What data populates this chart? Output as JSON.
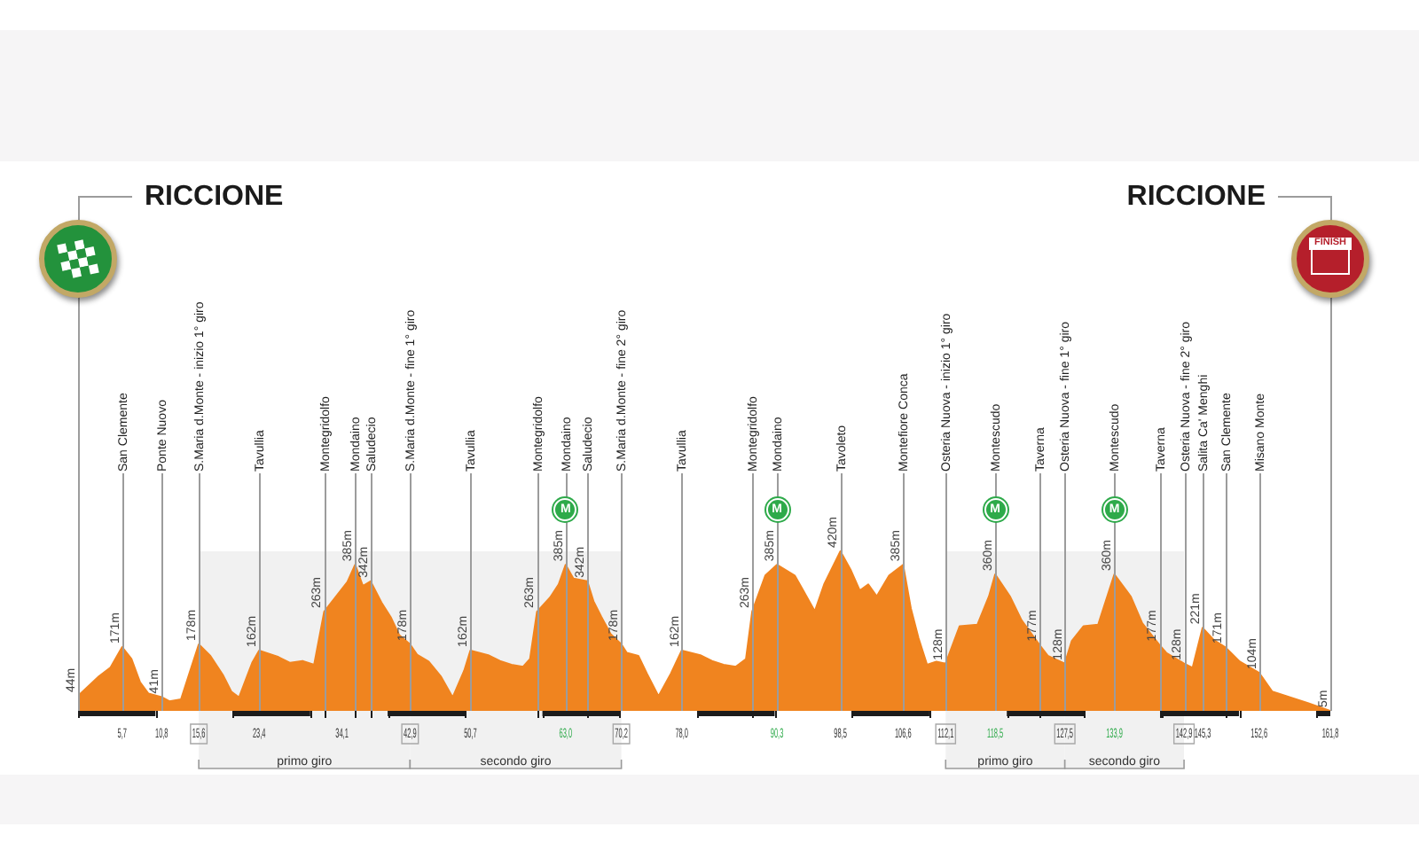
{
  "chart_data": {
    "type": "area",
    "color": "#f0841f",
    "x": [
      0,
      2.7,
      4.2,
      5.7,
      6.9,
      8.0,
      9.1,
      10.8,
      11.8,
      13.3,
      15.6,
      17.1,
      18.7,
      19.8,
      20.8,
      22.5,
      23.4,
      25.9,
      27.4,
      29.0,
      30.5,
      31.8,
      34.8,
      35.8,
      36.8,
      37.8,
      39.2,
      40.4,
      41.5,
      42.9,
      43.8,
      45.3,
      46.9,
      48.4,
      49.9,
      50.7,
      53.0,
      54.5,
      56.0,
      57.5,
      58.4,
      59.3,
      61.0,
      62.1,
      63.0,
      64.0,
      65.8,
      66.6,
      67.6,
      68.8,
      70.2,
      70.9,
      72.4,
      73.5,
      75.0,
      76.6,
      78.0,
      80.4,
      81.9,
      83.4,
      85.0,
      86.3,
      87.1,
      88.8,
      90.3,
      92.6,
      93.7,
      95.2,
      96.4,
      98.5,
      99.8,
      101.0,
      102.1,
      103.2,
      104.8,
      106.6,
      107.6,
      108.6,
      109.7,
      110.9,
      112.1,
      113.9,
      116.2,
      117.7,
      118.5,
      120.4,
      121.9,
      124.2,
      125.3,
      127.5,
      128.4,
      129.9,
      131.8,
      133.9,
      136.0,
      137.5,
      139.7,
      140.6,
      142.9,
      144.0,
      145.3,
      146.7,
      148.2,
      150.1,
      152.6,
      154.3,
      156.6,
      158.9,
      161.8
    ],
    "values": [
      44,
      95,
      118,
      171,
      140,
      80,
      50,
      41,
      30,
      35,
      178,
      148,
      99,
      55,
      40,
      130,
      162,
      145,
      130,
      135,
      125,
      263,
      340,
      385,
      330,
      342,
      287,
      249,
      202,
      178,
      151,
      133,
      94,
      40,
      110,
      162,
      150,
      135,
      125,
      120,
      140,
      263,
      300,
      334,
      385,
      349,
      342,
      290,
      250,
      205,
      178,
      156,
      148,
      102,
      43,
      102,
      162,
      150,
      135,
      125,
      120,
      140,
      263,
      357,
      385,
      357,
      318,
      264,
      334,
      420,
      373,
      318,
      334,
      303,
      357,
      385,
      272,
      194,
      125,
      133,
      128,
      225,
      229,
      303,
      360,
      303,
      241,
      177,
      148,
      128,
      187,
      225,
      229,
      360,
      303,
      233,
      177,
      156,
      128,
      117,
      221,
      190,
      171,
      133,
      104,
      55,
      40,
      25,
      5
    ],
    "value_labels": [
      "44m",
      null,
      null,
      "171m",
      null,
      null,
      null,
      "41m",
      null,
      null,
      "178m",
      null,
      null,
      null,
      null,
      null,
      "162m",
      null,
      null,
      null,
      null,
      "263m",
      null,
      "385m",
      null,
      "342m",
      null,
      null,
      null,
      "178m",
      null,
      null,
      null,
      null,
      null,
      "162m",
      null,
      null,
      null,
      null,
      null,
      "263m",
      null,
      null,
      "385m",
      null,
      "342m",
      null,
      null,
      null,
      "178m",
      null,
      null,
      null,
      null,
      null,
      "162m",
      null,
      null,
      null,
      null,
      null,
      "263m",
      null,
      "385m",
      null,
      null,
      null,
      null,
      "420m",
      null,
      null,
      null,
      null,
      null,
      "385m",
      null,
      null,
      null,
      null,
      "128m",
      null,
      null,
      null,
      "360m",
      null,
      null,
      "177m",
      null,
      "128m",
      null,
      null,
      null,
      "360m",
      null,
      null,
      "177m",
      null,
      "128m",
      null,
      "221m",
      null,
      "171m",
      null,
      "104m",
      null,
      null,
      null,
      "5m"
    ],
    "xlim": [
      0,
      161.8
    ],
    "xticks": [
      {
        "value": 0,
        "label": null
      },
      {
        "value": 5.7,
        "label": "5,7"
      },
      {
        "value": 10,
        "label": null
      },
      {
        "value": 10.8,
        "label": "10,8"
      },
      {
        "value": 15.6,
        "label": "15,6"
      },
      {
        "value": 20,
        "label": null
      },
      {
        "value": 23.4,
        "label": "23,4"
      },
      {
        "value": 30,
        "label": null
      },
      {
        "value": 31.8,
        "label": null
      },
      {
        "value": 34.1,
        "label": "34,1"
      },
      {
        "value": 35.8,
        "label": null
      },
      {
        "value": 37.8,
        "label": null
      },
      {
        "value": 40,
        "label": null
      },
      {
        "value": 42.9,
        "label": "42,9"
      },
      {
        "value": 50,
        "label": null
      },
      {
        "value": 50.7,
        "label": "50,7"
      },
      {
        "value": 59.3,
        "label": null
      },
      {
        "value": 60,
        "label": null
      },
      {
        "value": 63.0,
        "label": "63,0"
      },
      {
        "value": 65.8,
        "label": null
      },
      {
        "value": 70,
        "label": null
      },
      {
        "value": 70.2,
        "label": "70,2"
      },
      {
        "value": 78.0,
        "label": "78,0"
      },
      {
        "value": 80,
        "label": null
      },
      {
        "value": 87.1,
        "label": null
      },
      {
        "value": 90,
        "label": null
      },
      {
        "value": 90.3,
        "label": "90,3"
      },
      {
        "value": 98.5,
        "label": "98,5"
      },
      {
        "value": 100,
        "label": null
      },
      {
        "value": 106.6,
        "label": "106,6"
      },
      {
        "value": 110,
        "label": null
      },
      {
        "value": 112.1,
        "label": "112,1"
      },
      {
        "value": 118.5,
        "label": "118,5"
      },
      {
        "value": 120,
        "label": null
      },
      {
        "value": 124.2,
        "label": null
      },
      {
        "value": 127.5,
        "label": "127,5"
      },
      {
        "value": 130,
        "label": null
      },
      {
        "value": 133.9,
        "label": "133,9"
      },
      {
        "value": 139.7,
        "label": null
      },
      {
        "value": 140,
        "label": null
      },
      {
        "value": 142.9,
        "label": "142,9"
      },
      {
        "value": 145.3,
        "label": "145,3"
      },
      {
        "value": 148.2,
        "label": null
      },
      {
        "value": 150,
        "label": null
      },
      {
        "value": 152.6,
        "label": "152,6"
      },
      {
        "value": 160,
        "label": null
      },
      {
        "value": 161.8,
        "label": "161,8"
      }
    ],
    "ref_lines": [
      {
        "axis": "x",
        "value": 5.7,
        "label": "San Clemente"
      },
      {
        "axis": "x",
        "value": 10.8,
        "label": "Ponte Nuovo"
      },
      {
        "axis": "x",
        "value": 15.6,
        "label": "S.Maria d.Monte - inizio 1° giro"
      },
      {
        "axis": "x",
        "value": 23.4,
        "label": "Tavullia"
      },
      {
        "axis": "x",
        "value": 31.8,
        "label": "Montegridolfo"
      },
      {
        "axis": "x",
        "value": 35.8,
        "label": "Mondaino"
      },
      {
        "axis": "x",
        "value": 37.8,
        "label": "Saludecio"
      },
      {
        "axis": "x",
        "value": 42.9,
        "label": "S.Maria d.Monte - fine 1° giro"
      },
      {
        "axis": "x",
        "value": 50.7,
        "label": "Tavullia"
      },
      {
        "axis": "x",
        "value": 59.3,
        "label": "Montegridolfo"
      },
      {
        "axis": "x",
        "value": 63.0,
        "label": "Mondaino"
      },
      {
        "axis": "x",
        "value": 65.8,
        "label": "Saludecio"
      },
      {
        "axis": "x",
        "value": 70.2,
        "label": "S.Maria d.Monte - fine 2° giro"
      },
      {
        "axis": "x",
        "value": 78.0,
        "label": "Tavullia"
      },
      {
        "axis": "x",
        "value": 87.1,
        "label": "Montegridolfo"
      },
      {
        "axis": "x",
        "value": 90.3,
        "label": "Mondaino"
      },
      {
        "axis": "x",
        "value": 98.5,
        "label": "Tavoleto"
      },
      {
        "axis": "x",
        "value": 106.6,
        "label": "Montefiore Conca"
      },
      {
        "axis": "x",
        "value": 112.1,
        "label": "Osteria Nuova - inizio 1° giro"
      },
      {
        "axis": "x",
        "value": 118.5,
        "label": "Montescudo"
      },
      {
        "axis": "x",
        "value": 124.2,
        "label": "Taverna"
      },
      {
        "axis": "x",
        "value": 127.5,
        "label": "Osteria Nuova - fine 1° giro"
      },
      {
        "axis": "x",
        "value": 133.9,
        "label": "Montescudo"
      },
      {
        "axis": "x",
        "value": 139.7,
        "label": "Taverna"
      },
      {
        "axis": "x",
        "value": 142.9,
        "label": "Osteria Nuova - fine 2° giro"
      },
      {
        "axis": "x",
        "value": 145.3,
        "label": "Salita Ca' Menghi"
      },
      {
        "axis": "x",
        "value": 148.2,
        "label": "San Clemente"
      },
      {
        "axis": "x",
        "value": 152.6,
        "label": "Misano Monte"
      }
    ],
    "bands": [
      {
        "axis": "x",
        "from": 15.6,
        "to": 42.9,
        "label": "primo giro"
      },
      {
        "axis": "x",
        "from": 42.9,
        "to": 70.2,
        "label": "secondo giro"
      },
      {
        "axis": "x",
        "from": 112.1,
        "to": 127.5,
        "label": "primo giro"
      },
      {
        "axis": "x",
        "from": 127.5,
        "to": 142.9,
        "label": "secondo giro"
      }
    ],
    "annotations": [
      "RICCIONE",
      "RICCIONE",
      "FINISH",
      {
        "text": "M",
        "x": 63.0
      },
      {
        "text": "M",
        "x": 90.3
      },
      {
        "text": "M",
        "x": 118.5
      },
      {
        "text": "M",
        "x": 133.9
      }
    ],
    "grid": false,
    "legend": false
  }
}
